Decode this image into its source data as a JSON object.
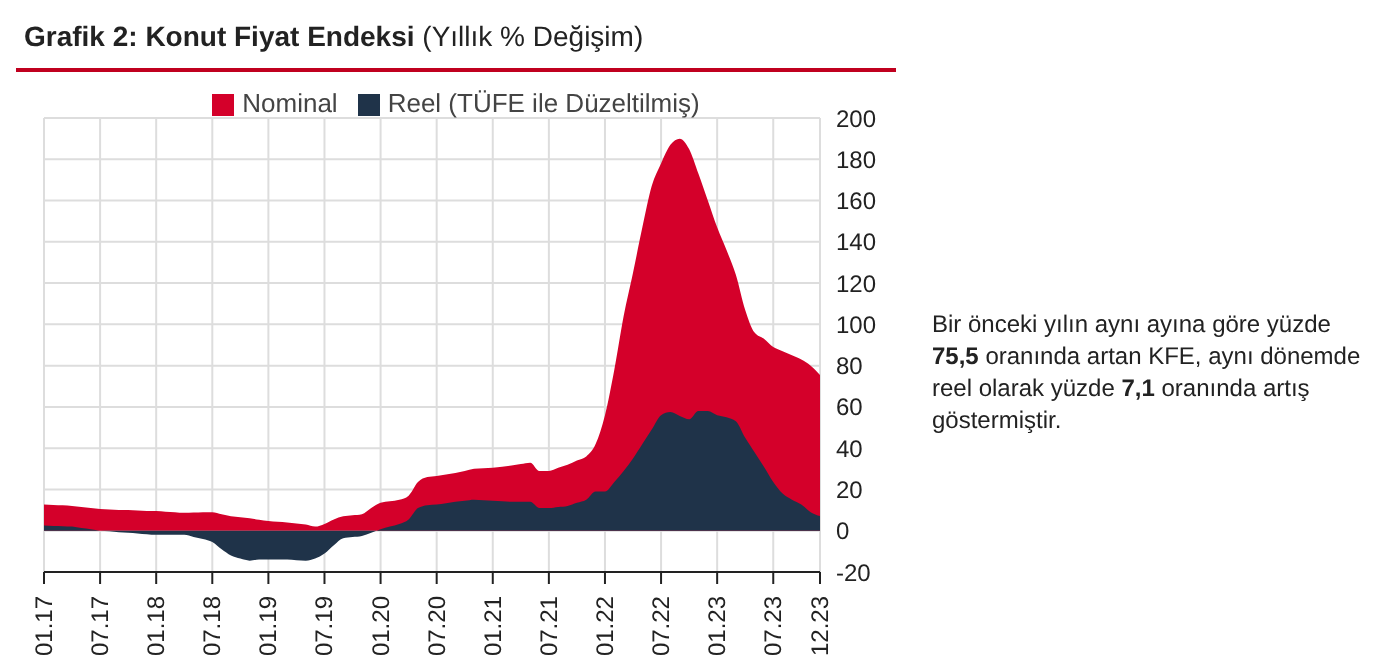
{
  "chart_data": {
    "type": "area",
    "title": "Grafik 2: Konut Fiyat Endeksi",
    "subtitle": "(Yıllık % Değişim)",
    "categories": [
      "01.17",
      null,
      null,
      null,
      null,
      null,
      "07.17",
      null,
      null,
      null,
      null,
      null,
      "01.18",
      null,
      null,
      null,
      null,
      null,
      "07.18",
      null,
      null,
      null,
      null,
      null,
      "01.19",
      null,
      null,
      null,
      null,
      null,
      "07.19",
      null,
      null,
      null,
      null,
      null,
      "01.20",
      null,
      null,
      null,
      null,
      null,
      "07.20",
      null,
      null,
      null,
      null,
      null,
      "01.21",
      null,
      null,
      null,
      null,
      null,
      "07.21",
      null,
      null,
      null,
      null,
      null,
      "01.22",
      null,
      null,
      null,
      null,
      null,
      "07.22",
      null,
      null,
      null,
      null,
      null,
      "01.23",
      null,
      null,
      null,
      null,
      null,
      "07.23",
      null,
      null,
      null,
      null,
      "12.23"
    ],
    "series": [
      {
        "name": "Nominal",
        "color": "#d4002a",
        "values": [
          12.7,
          12.5,
          12.3,
          12,
          11.5,
          11,
          10.5,
          10.3,
          10.1,
          10,
          9.8,
          9.6,
          9.5,
          9.2,
          9,
          8.7,
          8.8,
          9,
          9,
          8,
          7,
          6.5,
          6,
          5.3,
          4.7,
          4.3,
          4,
          3.5,
          3,
          2,
          3.3,
          5.5,
          7,
          7.5,
          8,
          11,
          13.5,
          14.3,
          15,
          17,
          23.6,
          26,
          26.5,
          27.3,
          28,
          29,
          30,
          30.3,
          30.5,
          31,
          31.6,
          32.3,
          33,
          29,
          29,
          30.5,
          32,
          34,
          36,
          42,
          56,
          78,
          104,
          125,
          147,
          167,
          178,
          187,
          190,
          185,
          173,
          160,
          147,
          136,
          124,
          107,
          96,
          93,
          89,
          87,
          85,
          83,
          80,
          75.5
        ]
      },
      {
        "name": "Reel (TÜFE ile Düzeltilmiş)",
        "color": "#1f3349",
        "values": [
          2.5,
          2.3,
          2.2,
          2,
          1.3,
          0.7,
          0,
          -0.3,
          -0.7,
          -1,
          -1.3,
          -1.7,
          -2,
          -2,
          -2,
          -2,
          -3,
          -4,
          -5.5,
          -9,
          -12,
          -13.5,
          -14.5,
          -14,
          -14,
          -14,
          -14,
          -14.3,
          -14.5,
          -13.5,
          -11,
          -7,
          -3.6,
          -3,
          -2.5,
          -1,
          0.7,
          2,
          3.3,
          5.5,
          11,
          12.4,
          12.7,
          13.3,
          14,
          14.5,
          15,
          14.8,
          14.5,
          14.3,
          14,
          14,
          14,
          11,
          11,
          11.5,
          12,
          13.5,
          15,
          19,
          19,
          23.6,
          29,
          35,
          42,
          49,
          56,
          57.5,
          55.6,
          54,
          58,
          58,
          56,
          55,
          53,
          45,
          38,
          31,
          23.6,
          18,
          15,
          12.7,
          9,
          7.1
        ]
      }
    ],
    "ylim": [
      -20,
      200
    ],
    "yticks": [
      -20,
      0,
      20,
      40,
      60,
      80,
      100,
      120,
      140,
      160,
      180,
      200
    ],
    "grid": true,
    "legend": "top",
    "annotations": [
      "Bir önceki yılın aynı ayına göre yüzde 75,5 oranında artan KFE, aynı dönemde reel olarak yüzde 7,1 oranında artış göstermiştir."
    ]
  }
}
